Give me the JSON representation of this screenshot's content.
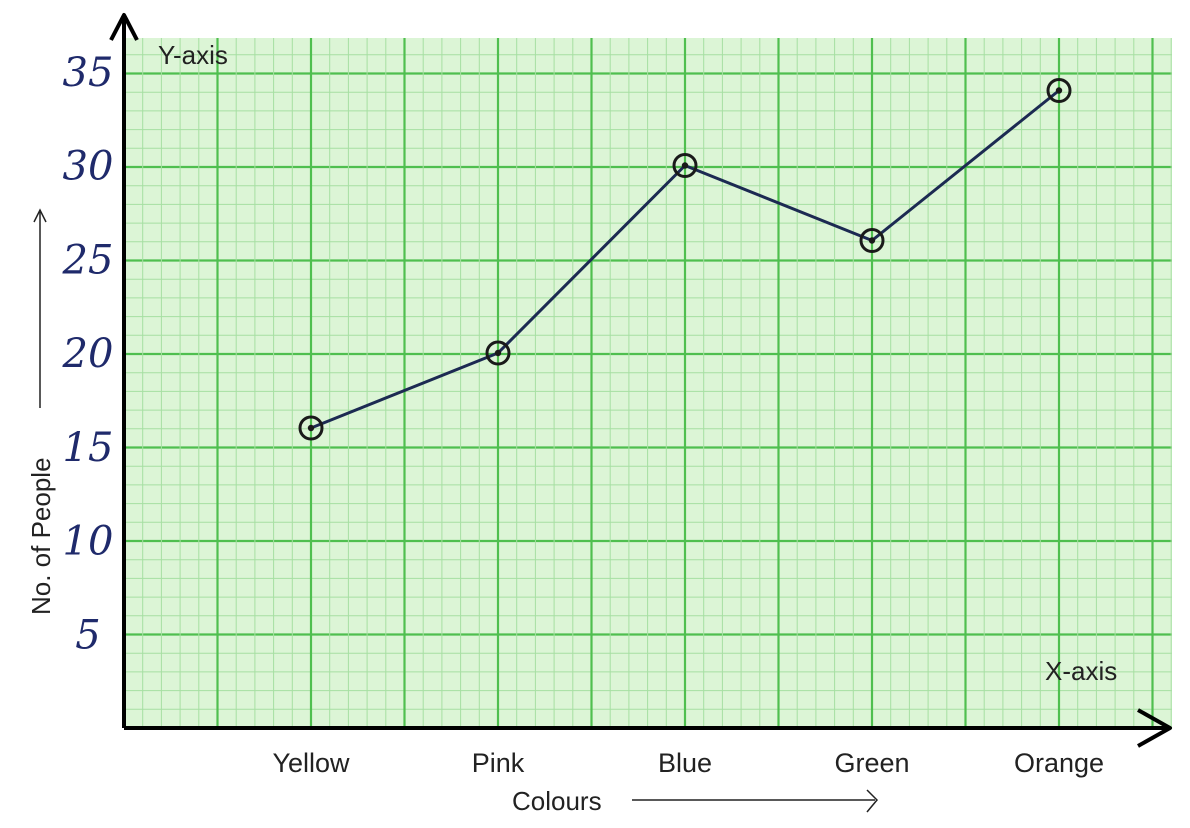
{
  "chart_data": {
    "type": "line",
    "title": "",
    "xlabel": "Colours",
    "ylabel": "No. of People",
    "x_axis_name": "X-axis",
    "y_axis_name": "Y-axis",
    "categories": [
      "Yellow",
      "Pink",
      "Blue",
      "Green",
      "Orange"
    ],
    "series": [
      {
        "values": [
          16,
          20,
          30,
          26,
          34
        ]
      }
    ],
    "yticks": [
      5,
      10,
      15,
      20,
      25,
      30,
      35
    ],
    "ylim": [
      0,
      35
    ],
    "grid": true,
    "legend": "none",
    "colors": {
      "grid_major": "#4fbf4f",
      "grid_minor": "#a6dfa2",
      "background": "#dcf5d6",
      "line": "#1c2a52",
      "axis": "#000000",
      "tick_text": "#1f2a6b"
    }
  }
}
